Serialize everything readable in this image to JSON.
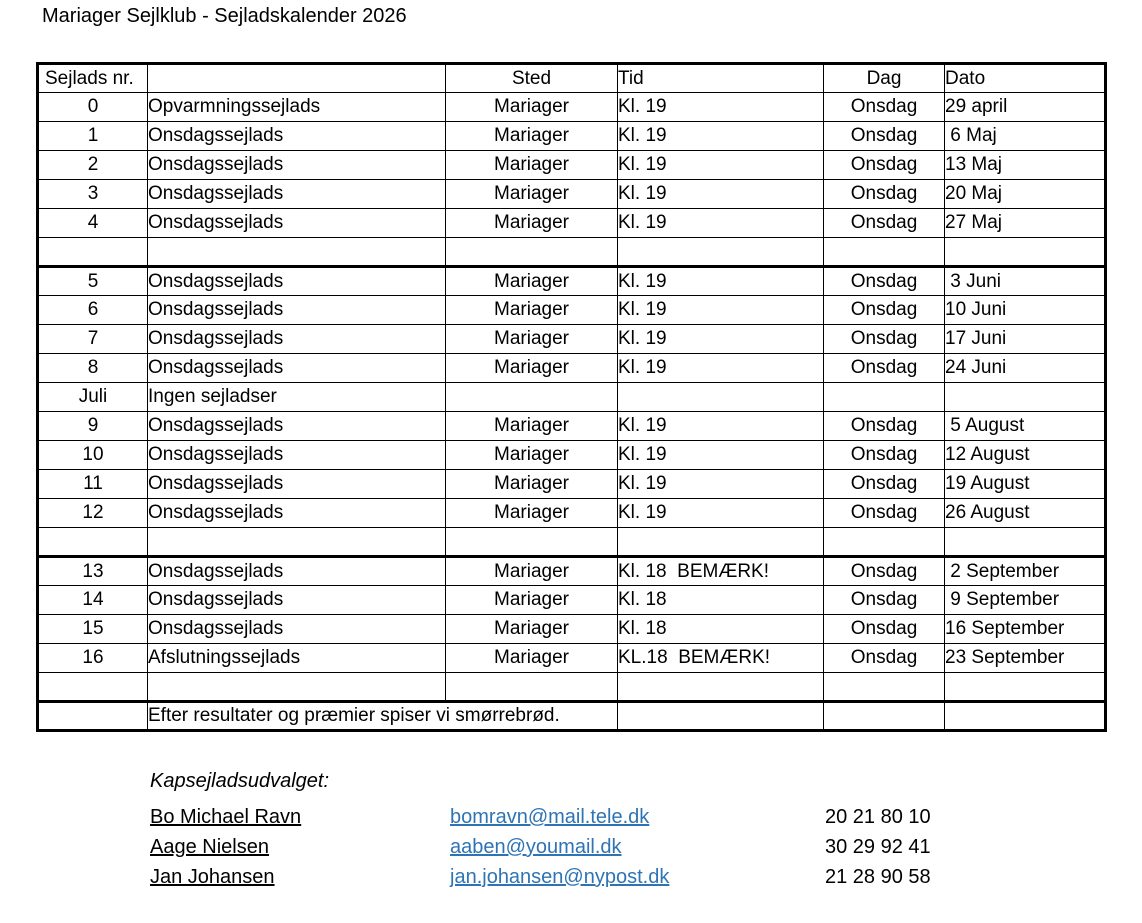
{
  "title": "Mariager Sejlklub - Sejladskalender 2026",
  "table": {
    "col_keys": [
      "nr",
      "name",
      "sted",
      "tid",
      "dag",
      "dato"
    ],
    "headers": [
      "Sejlads nr.",
      "",
      "Sted",
      "Tid",
      "Dag",
      "Dato"
    ],
    "rows": [
      {
        "cells": [
          "0",
          "Opvarmningssejlads",
          "Mariager",
          "Kl. 19",
          "Onsdag",
          "29 april"
        ],
        "bold": [
          0,
          1,
          5
        ]
      },
      {
        "cells": [
          "1",
          "Onsdagssejlads",
          "Mariager",
          "Kl. 19",
          "Onsdag",
          " 6 Maj"
        ]
      },
      {
        "cells": [
          "2",
          "Onsdagssejlads",
          "Mariager",
          "Kl. 19",
          "Onsdag",
          "13 Maj"
        ]
      },
      {
        "cells": [
          "3",
          "Onsdagssejlads",
          "Mariager",
          "Kl. 19",
          "Onsdag",
          "20 Maj"
        ]
      },
      {
        "cells": [
          "4",
          "Onsdagssejlads",
          "Mariager",
          "Kl. 19",
          "Onsdag",
          "27 Maj"
        ]
      },
      {
        "cells": [
          "",
          "",
          "",
          "",
          "",
          ""
        ]
      },
      {
        "cells": [
          "5",
          "Onsdagssejlads",
          "Mariager",
          "Kl. 19",
          "Onsdag",
          " 3 Juni"
        ],
        "section_start": true
      },
      {
        "cells": [
          "6",
          "Onsdagssejlads",
          "Mariager",
          "Kl. 19",
          "Onsdag",
          "10 Juni"
        ]
      },
      {
        "cells": [
          "7",
          "Onsdagssejlads",
          "Mariager",
          "Kl. 19",
          "Onsdag",
          "17 Juni"
        ]
      },
      {
        "cells": [
          "8",
          "Onsdagssejlads",
          "Mariager",
          "Kl. 19",
          "Onsdag",
          "24 Juni"
        ]
      },
      {
        "cells": [
          "Juli",
          "Ingen sejladser",
          "",
          "",
          "",
          ""
        ],
        "bold": [
          0,
          1
        ]
      },
      {
        "cells": [
          "9",
          "Onsdagssejlads",
          "Mariager",
          "Kl. 19",
          "Onsdag",
          " 5 August"
        ]
      },
      {
        "cells": [
          "10",
          "Onsdagssejlads",
          "Mariager",
          "Kl. 19",
          "Onsdag",
          "12 August"
        ]
      },
      {
        "cells": [
          "11",
          "Onsdagssejlads",
          "Mariager",
          "Kl. 19",
          "Onsdag",
          "19 August"
        ]
      },
      {
        "cells": [
          "12",
          "Onsdagssejlads",
          "Mariager",
          "Kl. 19",
          "Onsdag",
          "26 August"
        ]
      },
      {
        "cells": [
          "",
          "",
          "",
          "",
          "",
          ""
        ]
      },
      {
        "cells": [
          "13",
          "Onsdagssejlads",
          "Mariager",
          "Kl. 18  BEMÆRK!",
          "Onsdag",
          " 2 September"
        ],
        "bold": [
          3
        ],
        "section_start": true
      },
      {
        "cells": [
          "14",
          "Onsdagssejlads",
          "Mariager",
          "Kl. 18",
          "Onsdag",
          " 9 September"
        ],
        "bold": [
          3
        ]
      },
      {
        "cells": [
          "15",
          "Onsdagssejlads",
          "Mariager",
          "Kl. 18",
          "Onsdag",
          "16 September"
        ],
        "bold": [
          3
        ]
      },
      {
        "cells": [
          "16",
          "Afslutningssejlads",
          "Mariager",
          "KL.18  BEMÆRK!",
          "Onsdag",
          "23 September"
        ],
        "bold": [
          1,
          3
        ]
      },
      {
        "cells": [
          "",
          "",
          "",
          "",
          "",
          ""
        ]
      },
      {
        "cells": [
          "",
          "Efter resultater og præmier spiser vi smørrebrød.",
          "",
          "",
          ""
        ],
        "merge": true,
        "section_start": true
      }
    ]
  },
  "committee": {
    "heading": "Kapsejladsudvalget:",
    "members": [
      {
        "name": "Bo Michael Ravn",
        "email": "bomravn@mail.tele.dk",
        "phone": "20 21 80 10"
      },
      {
        "name": "Aage Nielsen",
        "email": "aaben@youmail.dk",
        "phone": "30 29 92 41"
      },
      {
        "name": "Jan Johansen",
        "email": "jan.johansen@nypost.dk",
        "phone": "21 28 90 58"
      }
    ]
  },
  "colors": {
    "text": "#000000",
    "border": "#000000",
    "link": "#2E74B5",
    "background": "#FFFFFF"
  }
}
